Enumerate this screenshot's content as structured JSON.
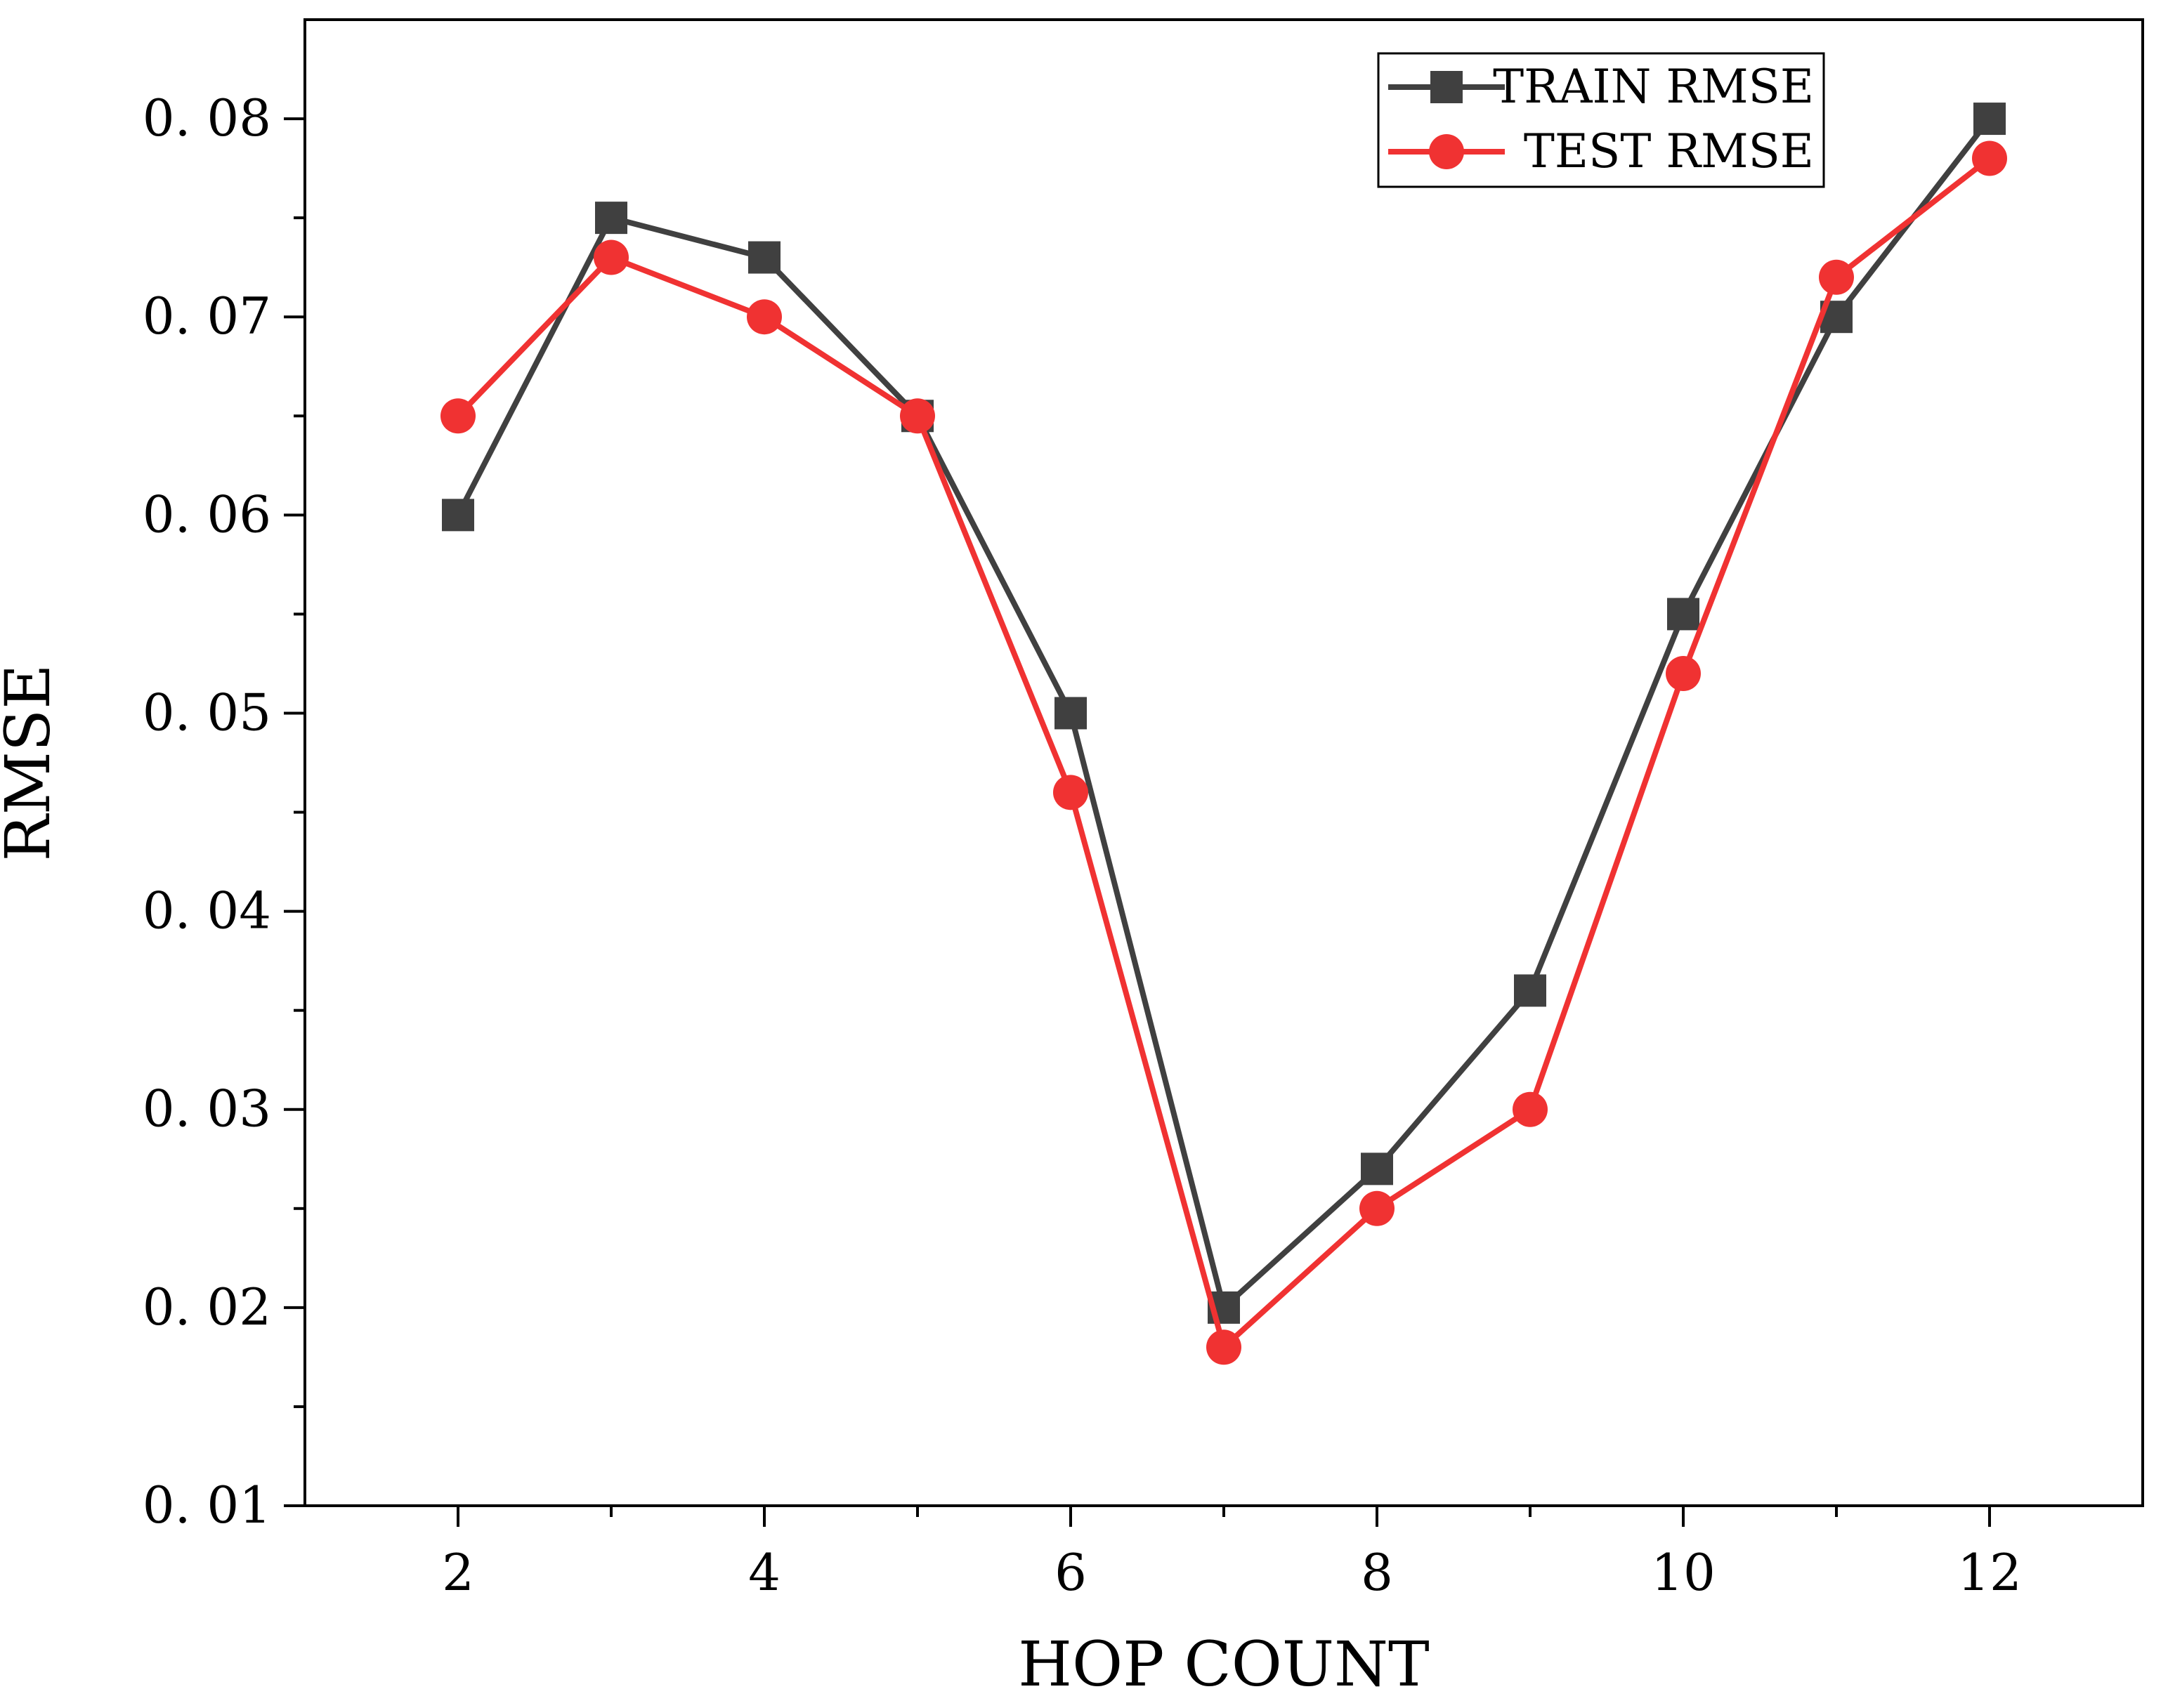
{
  "chart_data": {
    "type": "line",
    "title": "",
    "xlabel": "HOP COUNT",
    "ylabel": "RMSE",
    "xlim": [
      1,
      13
    ],
    "ylim": [
      0.01,
      0.085
    ],
    "x": [
      2,
      3,
      4,
      5,
      6,
      7,
      8,
      9,
      10,
      11,
      12
    ],
    "x_ticks": [
      2,
      4,
      6,
      8,
      10,
      12
    ],
    "x_tick_labels": [
      "2",
      "4",
      "6",
      "8",
      "10",
      "12"
    ],
    "y_ticks": [
      0.01,
      0.02,
      0.03,
      0.04,
      0.05,
      0.06,
      0.07,
      0.08
    ],
    "y_tick_labels": [
      "0. 01",
      "0. 02",
      "0. 03",
      "0. 04",
      "0. 05",
      "0. 06",
      "0. 07",
      "0. 08"
    ],
    "grid": false,
    "legend_position": "top-right",
    "series": [
      {
        "name": "TRAIN RMSE",
        "color": "#404040",
        "marker": "square",
        "values": [
          0.06,
          0.075,
          0.073,
          0.065,
          0.05,
          0.02,
          0.027,
          0.036,
          0.055,
          0.07,
          0.08
        ]
      },
      {
        "name": "TEST RMSE",
        "color": "#f03232",
        "marker": "circle",
        "values": [
          0.065,
          0.073,
          0.07,
          0.065,
          0.046,
          0.018,
          0.025,
          0.03,
          0.052,
          0.072,
          0.078
        ]
      }
    ]
  }
}
